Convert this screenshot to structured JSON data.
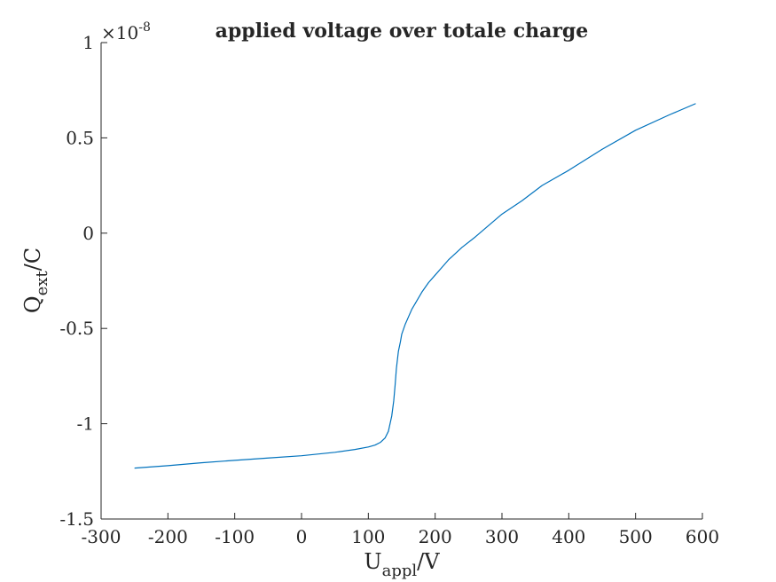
{
  "chart_data": {
    "type": "line",
    "title": "applied voltage over totale charge",
    "xlabel": {
      "main": "U",
      "sub": "appl",
      "unit": "/V"
    },
    "ylabel": {
      "main": "Q",
      "sub": "ext",
      "unit": "/C"
    },
    "y_exponent": {
      "base": "×10",
      "power": "-8"
    },
    "xlim": [
      -300,
      600
    ],
    "ylim": [
      -1.5,
      1
    ],
    "x_ticks": [
      -300,
      -200,
      -100,
      0,
      100,
      200,
      300,
      400,
      500,
      600
    ],
    "x_tick_labels": [
      "-300",
      "-200",
      "-100",
      "0",
      "100",
      "200",
      "300",
      "400",
      "500",
      "600"
    ],
    "y_ticks": [
      -1.5,
      -1,
      -0.5,
      0,
      0.5,
      1
    ],
    "y_tick_labels": [
      "-1.5",
      "-1",
      "-0.5",
      "0",
      "0.5",
      "1"
    ],
    "grid": false,
    "line_color": "#0072BD",
    "series": [
      {
        "x": [
          -250,
          -200,
          -150,
          -100,
          -50,
          0,
          50,
          80,
          100,
          110,
          118,
          125,
          130,
          135,
          138,
          140,
          142,
          145,
          148,
          150,
          155,
          160,
          165,
          170,
          180,
          190,
          200,
          210,
          220,
          240,
          260,
          280,
          300,
          330,
          360,
          400,
          450,
          500,
          550,
          590
        ],
        "y": [
          -1.233,
          -1.22,
          -1.205,
          -1.192,
          -1.18,
          -1.168,
          -1.15,
          -1.135,
          -1.122,
          -1.112,
          -1.098,
          -1.075,
          -1.04,
          -0.96,
          -0.88,
          -0.8,
          -0.71,
          -0.62,
          -0.57,
          -0.53,
          -0.48,
          -0.44,
          -0.4,
          -0.37,
          -0.31,
          -0.26,
          -0.22,
          -0.18,
          -0.14,
          -0.075,
          -0.02,
          0.04,
          0.1,
          0.17,
          0.25,
          0.33,
          0.44,
          0.54,
          0.62,
          0.68
        ]
      }
    ]
  }
}
